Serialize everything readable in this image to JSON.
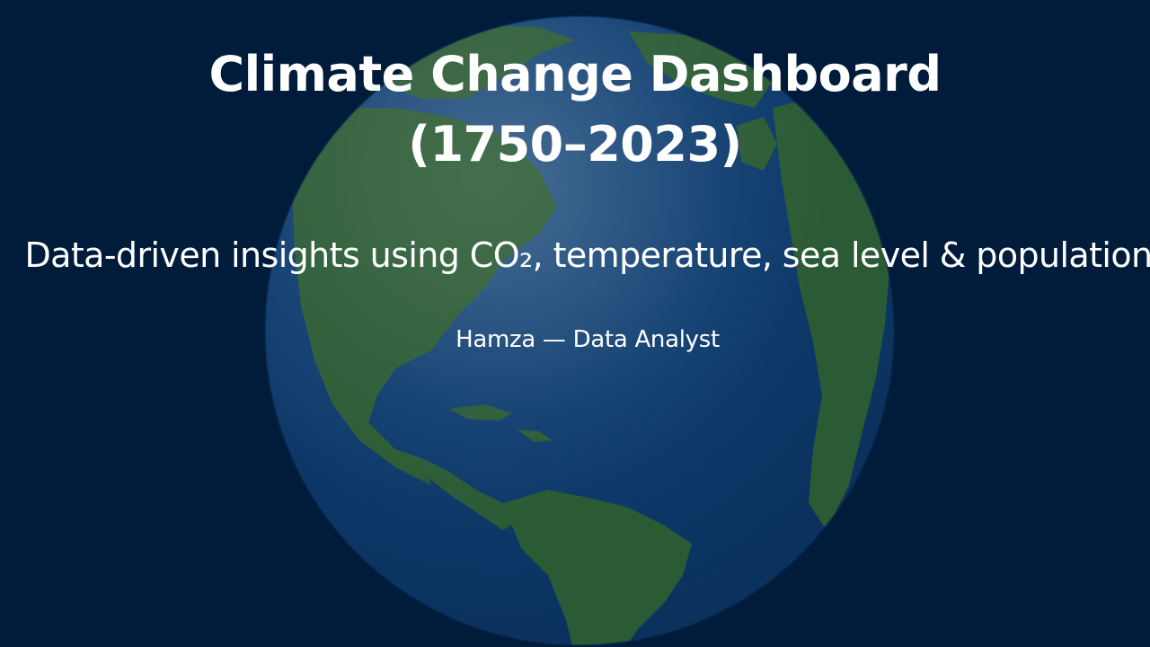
{
  "slide": {
    "title_line1": "Climate Change Dashboard",
    "title_line2": "(1750–2023)",
    "subtitle": "Data-driven insights using CO₂, temperature, sea level & population",
    "author": "Hamza — Data Analyst"
  },
  "colors": {
    "background": "#001c3a",
    "ocean": "#0e3a6e",
    "land": "#2a5a34",
    "text": "#ffffff"
  }
}
